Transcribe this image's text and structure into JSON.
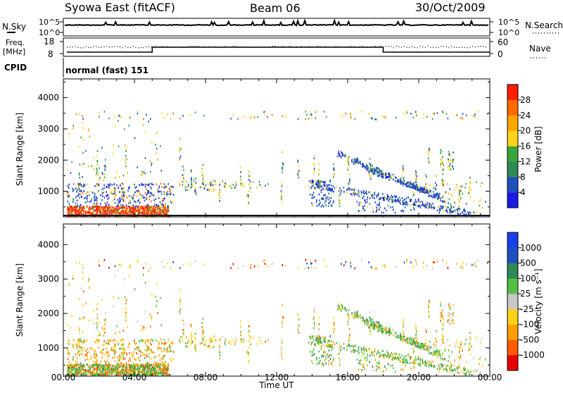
{
  "header": {
    "station": "Syowa East (fitACF)",
    "beam": "Beam 06",
    "date": "30/Oct/2009"
  },
  "top_panel": {
    "left_label": "N.Sky",
    "right_label": "N.Search",
    "left_ticks": [
      "10^5",
      "10^0"
    ],
    "right_ticks": [
      "10^5",
      "10^0"
    ]
  },
  "freq_panel": {
    "left_label_1": "Freq.",
    "left_label_2": "[MHz]",
    "right_label": "Nave",
    "left_ticks": [
      "18",
      "8"
    ],
    "right_ticks": [
      "60",
      "0"
    ],
    "cpid_label": "CPID",
    "cpid_value": "normal (fast) 151"
  },
  "colors": {
    "power": [
      "#1a1ae6",
      "#1f4fbf",
      "#2e8a57",
      "#3aa53a",
      "#ffd21a",
      "#ffa500",
      "#ff6a00",
      "#ff1e00"
    ],
    "velocity": [
      "#e60000",
      "#ff5a00",
      "#ff9e00",
      "#ffd21a",
      "#c8c8c8",
      "#55c044",
      "#2e8a57",
      "#1f4fbf",
      "#1a3fe6"
    ]
  },
  "chart_data": [
    {
      "type": "heatmap",
      "title": "",
      "xlabel": "Time UT",
      "ylabel": "Slant Range [km]",
      "xlim": [
        "00:00",
        "00:00"
      ],
      "x_ticks": [
        "00:00",
        "04:00",
        "08:00",
        "12:00",
        "16:00",
        "20:00",
        "00:00"
      ],
      "ylim": [
        180,
        4600
      ],
      "y_ticks": [
        1000,
        2000,
        3000,
        4000
      ],
      "colorbar": {
        "label": "Power [dB]",
        "range": [
          0,
          32
        ],
        "ticks": [
          4,
          8,
          12,
          16,
          20,
          24,
          28
        ]
      }
    },
    {
      "type": "heatmap",
      "title": "",
      "xlabel": "Time UT",
      "ylabel": "Slant Range [km]",
      "xlim": [
        "00:00",
        "00:00"
      ],
      "x_ticks": [
        "00:00",
        "04:00",
        "08:00",
        "12:00",
        "16:00",
        "20:00",
        "00:00"
      ],
      "ylim": [
        180,
        4600
      ],
      "y_ticks": [
        1000,
        2000,
        3000,
        4000
      ],
      "colorbar": {
        "label": "Velocity [m s⁻¹]",
        "ticks": [
          "1000",
          "500",
          "100",
          "25",
          "-25",
          "-100",
          "-500",
          "-1000"
        ]
      }
    }
  ]
}
